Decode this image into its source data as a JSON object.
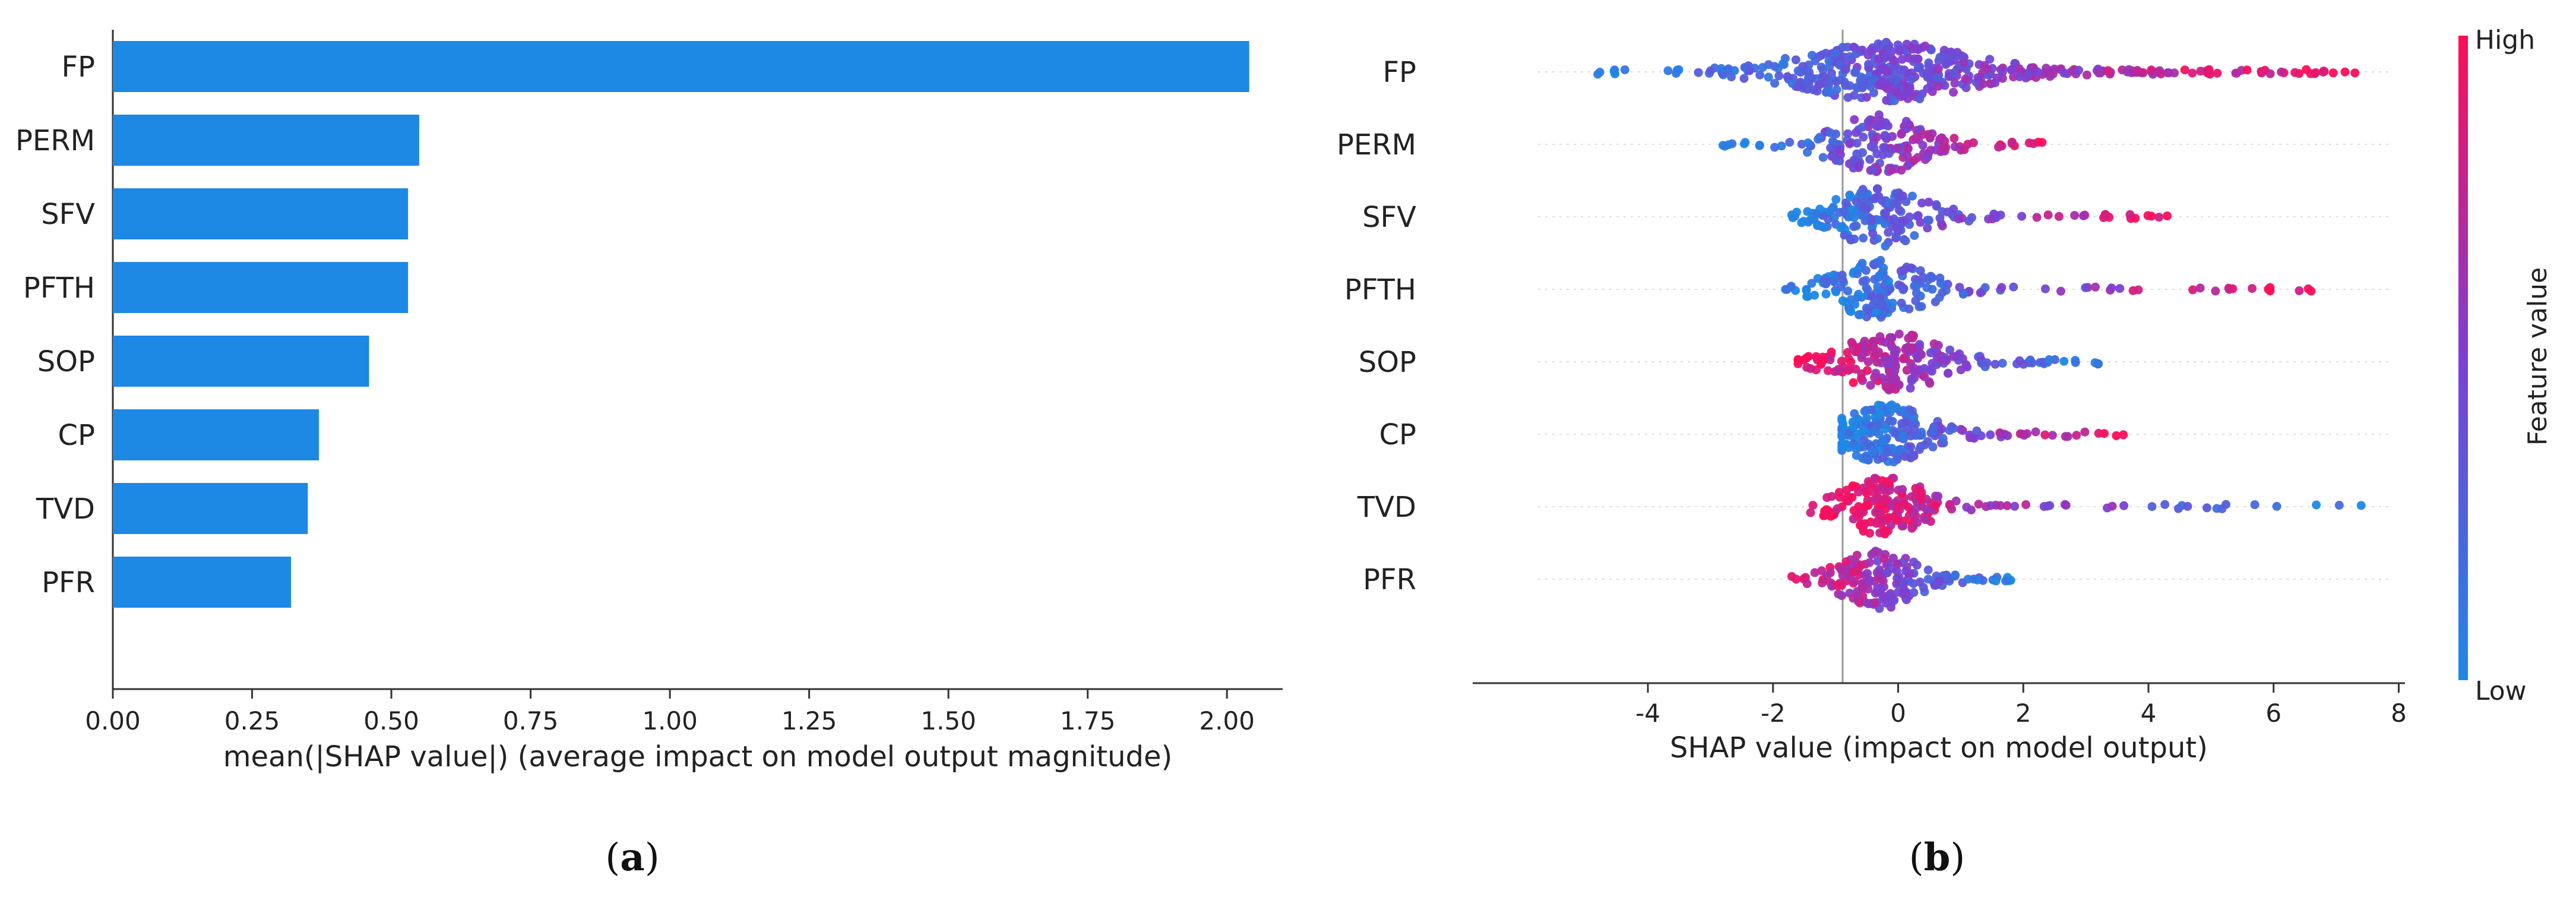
{
  "chart_data": [
    {
      "type": "bar",
      "orientation": "horizontal",
      "panel_label": {
        "open": "(",
        "letter": "a",
        "close": ")"
      },
      "categories": [
        "FP",
        "PERM",
        "SFV",
        "PFTH",
        "SOP",
        "CP",
        "TVD",
        "PFR"
      ],
      "values": [
        2.04,
        0.55,
        0.53,
        0.53,
        0.46,
        0.37,
        0.35,
        0.32
      ],
      "xlim": [
        0.0,
        2.1
      ],
      "xticks": [
        "0.00",
        "0.25",
        "0.50",
        "0.75",
        "1.00",
        "1.25",
        "1.50",
        "1.75",
        "2.00"
      ],
      "xlabel": "mean(|SHAP value|) (average impact on model output magnitude)",
      "bar_color": "#1e88e5"
    },
    {
      "type": "scatter",
      "subtype": "beeswarm",
      "panel_label": {
        "open": "(",
        "letter": "b",
        "close": ")"
      },
      "categories": [
        "FP",
        "PERM",
        "SFV",
        "PFTH",
        "SOP",
        "CP",
        "TVD",
        "PFR"
      ],
      "xlim": [
        -6.8,
        8.1
      ],
      "xticks": [
        "-4",
        "-2",
        "0",
        "2",
        "4",
        "6",
        "8"
      ],
      "xlabel": "SHAP value (impact on model output)",
      "colorbar": {
        "label": "Feature value",
        "high": "High",
        "low": "Low",
        "low_color": "#1e88e5",
        "mid_color": "#7d3fd3",
        "high_color": "#ff0d57"
      },
      "series": [
        {
          "name": "FP",
          "min": -4.8,
          "max": 7.3,
          "center": -0.2,
          "points": 460,
          "spread": 1.0,
          "low_side": "left"
        },
        {
          "name": "PERM",
          "min": -2.8,
          "max": 2.3,
          "center": -0.3,
          "points": 170,
          "spread": 0.55,
          "low_side": "left"
        },
        {
          "name": "SFV",
          "min": -1.7,
          "max": 4.3,
          "center": -0.3,
          "points": 180,
          "spread": 0.55,
          "low_side": "left"
        },
        {
          "name": "PFTH",
          "min": -1.8,
          "max": 6.6,
          "center": -0.3,
          "points": 180,
          "spread": 0.55,
          "low_side": "left"
        },
        {
          "name": "SOP",
          "min": -1.6,
          "max": 3.2,
          "center": -0.1,
          "points": 210,
          "spread": 0.6,
          "low_side": "right"
        },
        {
          "name": "CP",
          "min": -0.9,
          "max": 3.6,
          "center": -0.2,
          "points": 210,
          "spread": 0.5,
          "low_side": "left"
        },
        {
          "name": "TVD",
          "min": -1.4,
          "max": 7.4,
          "center": -0.2,
          "points": 200,
          "spread": 0.5,
          "low_side": "right"
        },
        {
          "name": "PFR",
          "min": -1.7,
          "max": 1.8,
          "center": -0.3,
          "points": 170,
          "spread": 0.45,
          "low_side": "right"
        }
      ]
    }
  ]
}
